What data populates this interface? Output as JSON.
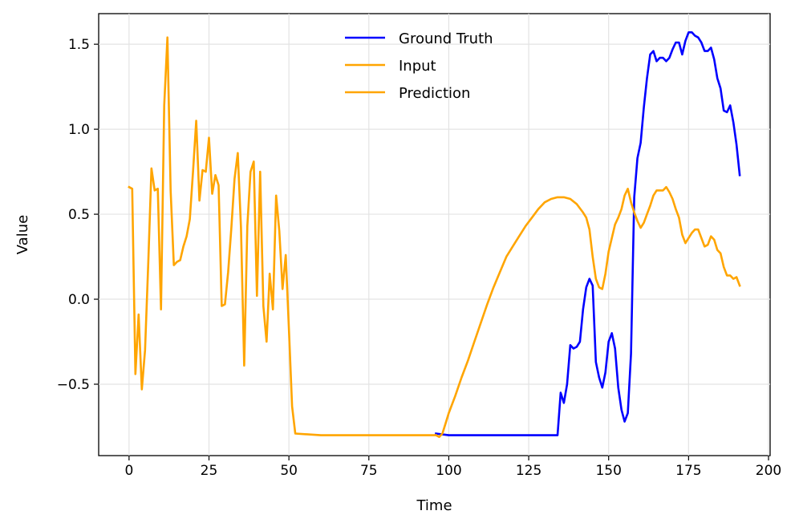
{
  "chart_data": {
    "type": "line",
    "xlabel": "Time",
    "ylabel": "Value",
    "xlim": [
      -9.5,
      200.5
    ],
    "ylim": [
      -0.92,
      1.68
    ],
    "xticks": [
      0,
      25,
      50,
      75,
      100,
      125,
      150,
      175,
      200
    ],
    "yticks": [
      -0.5,
      0.0,
      0.5,
      1.0,
      1.5
    ],
    "xtick_labels": [
      "0",
      "25",
      "50",
      "75",
      "100",
      "125",
      "150",
      "175",
      "200"
    ],
    "ytick_labels": [
      "−0.5",
      "0.0",
      "0.5",
      "1.0",
      "1.5"
    ],
    "grid": true,
    "legend_position": "top-center",
    "series": [
      {
        "name": "Ground Truth",
        "color": "#0000ff",
        "points": [
          [
            96,
            -0.79
          ],
          [
            100,
            -0.8
          ],
          [
            110,
            -0.8
          ],
          [
            120,
            -0.8
          ],
          [
            130,
            -0.8
          ],
          [
            134,
            -0.8
          ],
          [
            135,
            -0.55
          ],
          [
            136,
            -0.61
          ],
          [
            137,
            -0.5
          ],
          [
            138,
            -0.27
          ],
          [
            139,
            -0.29
          ],
          [
            140,
            -0.28
          ],
          [
            141,
            -0.25
          ],
          [
            142,
            -0.06
          ],
          [
            143,
            0.07
          ],
          [
            144,
            0.12
          ],
          [
            145,
            0.08
          ],
          [
            146,
            -0.37
          ],
          [
            147,
            -0.46
          ],
          [
            148,
            -0.52
          ],
          [
            149,
            -0.43
          ],
          [
            150,
            -0.25
          ],
          [
            151,
            -0.2
          ],
          [
            152,
            -0.29
          ],
          [
            153,
            -0.52
          ],
          [
            154,
            -0.65
          ],
          [
            155,
            -0.72
          ],
          [
            156,
            -0.67
          ],
          [
            157,
            -0.32
          ],
          [
            158,
            0.6
          ],
          [
            159,
            0.83
          ],
          [
            160,
            0.92
          ],
          [
            161,
            1.13
          ],
          [
            162,
            1.3
          ],
          [
            163,
            1.44
          ],
          [
            164,
            1.46
          ],
          [
            165,
            1.4
          ],
          [
            166,
            1.42
          ],
          [
            167,
            1.42
          ],
          [
            168,
            1.4
          ],
          [
            169,
            1.42
          ],
          [
            170,
            1.47
          ],
          [
            171,
            1.51
          ],
          [
            172,
            1.51
          ],
          [
            173,
            1.44
          ],
          [
            174,
            1.52
          ],
          [
            175,
            1.57
          ],
          [
            176,
            1.57
          ],
          [
            177,
            1.55
          ],
          [
            178,
            1.54
          ],
          [
            179,
            1.51
          ],
          [
            180,
            1.46
          ],
          [
            181,
            1.46
          ],
          [
            182,
            1.48
          ],
          [
            183,
            1.41
          ],
          [
            184,
            1.3
          ],
          [
            185,
            1.24
          ],
          [
            186,
            1.11
          ],
          [
            187,
            1.1
          ],
          [
            188,
            1.14
          ],
          [
            189,
            1.04
          ],
          [
            190,
            0.91
          ],
          [
            191,
            0.73
          ]
        ]
      },
      {
        "name": "Input",
        "color": "#ffa500",
        "points": [
          [
            0,
            0.66
          ],
          [
            1,
            0.65
          ],
          [
            2,
            -0.44
          ],
          [
            3,
            -0.09
          ],
          [
            4,
            -0.53
          ],
          [
            5,
            -0.3
          ],
          [
            6,
            0.21
          ],
          [
            7,
            0.77
          ],
          [
            8,
            0.64
          ],
          [
            9,
            0.65
          ],
          [
            10,
            -0.06
          ],
          [
            11,
            1.14
          ],
          [
            12,
            1.54
          ],
          [
            13,
            0.64
          ],
          [
            14,
            0.2
          ],
          [
            15,
            0.22
          ],
          [
            16,
            0.23
          ],
          [
            17,
            0.31
          ],
          [
            18,
            0.37
          ],
          [
            19,
            0.47
          ],
          [
            20,
            0.75
          ],
          [
            21,
            1.05
          ],
          [
            22,
            0.58
          ],
          [
            23,
            0.76
          ],
          [
            24,
            0.75
          ],
          [
            25,
            0.95
          ],
          [
            26,
            0.62
          ],
          [
            27,
            0.73
          ],
          [
            28,
            0.67
          ],
          [
            29,
            -0.04
          ],
          [
            30,
            -0.03
          ],
          [
            31,
            0.16
          ],
          [
            32,
            0.42
          ],
          [
            33,
            0.71
          ],
          [
            34,
            0.86
          ],
          [
            35,
            0.42
          ],
          [
            36,
            -0.39
          ],
          [
            37,
            0.43
          ],
          [
            38,
            0.75
          ],
          [
            39,
            0.81
          ],
          [
            40,
            0.02
          ],
          [
            41,
            0.75
          ],
          [
            42,
            -0.04
          ],
          [
            43,
            -0.25
          ],
          [
            44,
            0.15
          ],
          [
            45,
            -0.06
          ],
          [
            46,
            0.61
          ],
          [
            47,
            0.4
          ],
          [
            48,
            0.06
          ],
          [
            49,
            0.26
          ],
          [
            50,
            -0.17
          ],
          [
            51,
            -0.63
          ],
          [
            52,
            -0.79
          ],
          [
            60,
            -0.8
          ],
          [
            70,
            -0.8
          ],
          [
            80,
            -0.8
          ],
          [
            90,
            -0.8
          ],
          [
            96,
            -0.8
          ]
        ]
      },
      {
        "name": "Prediction",
        "color": "#ffa500",
        "points": [
          [
            96,
            -0.8
          ],
          [
            97,
            -0.81
          ],
          [
            98,
            -0.79
          ],
          [
            99,
            -0.73
          ],
          [
            100,
            -0.67
          ],
          [
            102,
            -0.57
          ],
          [
            104,
            -0.46
          ],
          [
            106,
            -0.36
          ],
          [
            108,
            -0.25
          ],
          [
            110,
            -0.14
          ],
          [
            112,
            -0.03
          ],
          [
            114,
            0.07
          ],
          [
            116,
            0.16
          ],
          [
            118,
            0.25
          ],
          [
            120,
            0.31
          ],
          [
            122,
            0.37
          ],
          [
            124,
            0.43
          ],
          [
            126,
            0.48
          ],
          [
            128,
            0.53
          ],
          [
            130,
            0.57
          ],
          [
            132,
            0.59
          ],
          [
            134,
            0.6
          ],
          [
            136,
            0.6
          ],
          [
            138,
            0.59
          ],
          [
            140,
            0.56
          ],
          [
            142,
            0.51
          ],
          [
            143,
            0.48
          ],
          [
            144,
            0.41
          ],
          [
            145,
            0.25
          ],
          [
            146,
            0.12
          ],
          [
            147,
            0.07
          ],
          [
            148,
            0.06
          ],
          [
            149,
            0.15
          ],
          [
            150,
            0.28
          ],
          [
            151,
            0.36
          ],
          [
            152,
            0.44
          ],
          [
            153,
            0.48
          ],
          [
            154,
            0.53
          ],
          [
            155,
            0.61
          ],
          [
            156,
            0.65
          ],
          [
            157,
            0.57
          ],
          [
            158,
            0.51
          ],
          [
            159,
            0.46
          ],
          [
            160,
            0.42
          ],
          [
            161,
            0.45
          ],
          [
            162,
            0.5
          ],
          [
            163,
            0.55
          ],
          [
            164,
            0.61
          ],
          [
            165,
            0.64
          ],
          [
            166,
            0.64
          ],
          [
            167,
            0.64
          ],
          [
            168,
            0.66
          ],
          [
            169,
            0.63
          ],
          [
            170,
            0.59
          ],
          [
            171,
            0.53
          ],
          [
            172,
            0.48
          ],
          [
            173,
            0.38
          ],
          [
            174,
            0.33
          ],
          [
            175,
            0.36
          ],
          [
            176,
            0.39
          ],
          [
            177,
            0.41
          ],
          [
            178,
            0.41
          ],
          [
            179,
            0.36
          ],
          [
            180,
            0.31
          ],
          [
            181,
            0.32
          ],
          [
            182,
            0.37
          ],
          [
            183,
            0.35
          ],
          [
            184,
            0.29
          ],
          [
            185,
            0.27
          ],
          [
            186,
            0.19
          ],
          [
            187,
            0.14
          ],
          [
            188,
            0.14
          ],
          [
            189,
            0.12
          ],
          [
            190,
            0.13
          ],
          [
            191,
            0.08
          ]
        ]
      }
    ]
  }
}
